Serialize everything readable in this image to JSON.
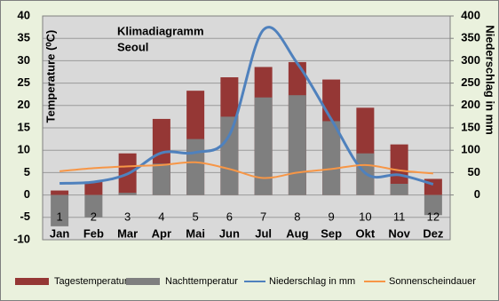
{
  "chart_data": {
    "type": "bar",
    "title": "Klimadiagramm",
    "subtitle": "Seoul",
    "y_label": "Temperature (⁰C)",
    "y2_label": "Niederschlag in mm",
    "categories": [
      "Jan",
      "Feb",
      "Mar",
      "Apr",
      "Mai",
      "Jun",
      "Jul",
      "Aug",
      "Sep",
      "Okt",
      "Nov",
      "Dez"
    ],
    "category_numbers": [
      "1",
      "2",
      "3",
      "4",
      "5",
      "6",
      "7",
      "8",
      "9",
      "10",
      "11",
      "12"
    ],
    "series": [
      {
        "name": "Tagestemperatur",
        "type": "bar",
        "color": "#953735",
        "values": [
          1,
          3,
          9.3,
          17,
          23.3,
          26.3,
          28.6,
          29.7,
          25.8,
          19.5,
          11.3,
          3.6
        ]
      },
      {
        "name": "Nachttemperatur",
        "type": "bar",
        "color": "#7f7f7f",
        "values": [
          -7,
          -5,
          0.5,
          7,
          12.5,
          17.5,
          21.8,
          22.3,
          16.5,
          9.3,
          2.5,
          -4.5
        ]
      },
      {
        "name": "Niederschlag in mm",
        "type": "line",
        "axis": "y2",
        "color": "#4f81bd",
        "values": [
          26,
          29,
          47,
          94,
          95,
          134,
          369,
          294,
          169,
          49,
          45,
          24
        ]
      },
      {
        "name": "Sonnenscheindauer",
        "type": "line",
        "axis": "y2",
        "color": "#f79646",
        "values": [
          53,
          60,
          64,
          67,
          73,
          58,
          38,
          50,
          58,
          67,
          55,
          48
        ]
      }
    ],
    "ylim": [
      -10,
      40
    ],
    "yticks": [
      -10,
      -5,
      0,
      5,
      10,
      15,
      20,
      25,
      30,
      35,
      40
    ],
    "y2lim": [
      -100,
      400
    ],
    "y2ticks": [
      0,
      50,
      100,
      150,
      200,
      250,
      300,
      350,
      400
    ],
    "grid": true,
    "legend": "bottom"
  }
}
